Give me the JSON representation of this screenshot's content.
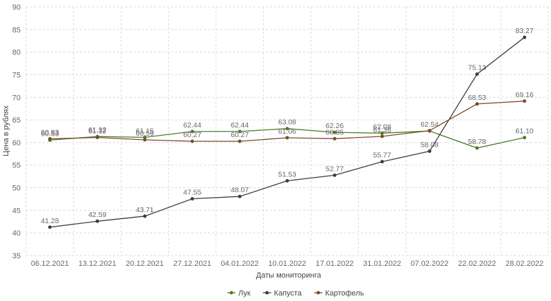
{
  "chart_data": {
    "type": "line",
    "title": "",
    "xlabel": "Даты мониторинга",
    "ylabel": "Цена в рублях",
    "ylim": [
      35,
      90
    ],
    "yticks": [
      35,
      40,
      45,
      50,
      55,
      60,
      65,
      70,
      75,
      80,
      85,
      90
    ],
    "grid": true,
    "legend_position": "bottom",
    "categories": [
      "06.12.2021",
      "13.12.2021",
      "20.12.2021",
      "27.12.2021",
      "04.01.2022",
      "10.01.2022",
      "17.01.2022",
      "31.01.2022",
      "07.02.2022",
      "22.02.2022",
      "28.02.2022"
    ],
    "series": [
      {
        "name": "Лук",
        "color": "#4f7a28",
        "values": [
          60.53,
          61.32,
          61.15,
          62.44,
          62.44,
          63.08,
          62.26,
          62.08,
          62.54,
          58.78,
          61.1
        ],
        "labels": [
          "60.53",
          "61.32",
          "61.15",
          "62.44",
          "62.44",
          "63.08",
          "62.26",
          "62.08",
          "62.54",
          "58.78",
          "61.10"
        ]
      },
      {
        "name": "Капуста",
        "color": "#3d3d3d",
        "values": [
          41.28,
          42.59,
          43.71,
          47.55,
          48.07,
          51.53,
          52.77,
          55.77,
          58.08,
          75.13,
          83.27
        ],
        "labels": [
          "41.28",
          "42.59",
          "43.71",
          "47.55",
          "48.07",
          "51.53",
          "52.77",
          "55.77",
          "58.08",
          "75.13",
          "83.27"
        ]
      },
      {
        "name": "Картофель",
        "color": "#7b4a2b",
        "values": [
          60.83,
          61.12,
          60.59,
          60.27,
          60.27,
          61.06,
          60.85,
          61.36,
          62.64,
          68.53,
          69.16
        ],
        "labels": [
          "60.83",
          "61.12",
          "60.59",
          "60.27",
          "60.27",
          "61.06",
          "60.85",
          "61.36",
          "",
          "68.53",
          "69.16"
        ]
      }
    ]
  }
}
